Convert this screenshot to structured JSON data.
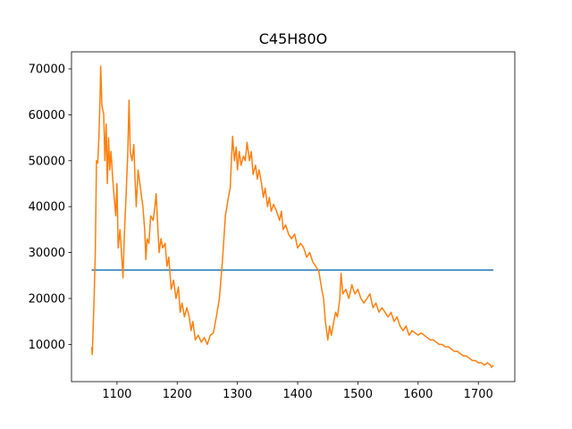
{
  "chart_data": {
    "type": "line",
    "title": "C45H80O",
    "xlim": [
      1024.5,
      1760.5
    ],
    "xticks": [
      1100,
      1200,
      1300,
      1400,
      1500,
      1600,
      1700
    ],
    "ylim": [
      1900,
      73700
    ],
    "yticks": [
      10000,
      20000,
      30000,
      40000,
      50000,
      60000,
      70000
    ],
    "grid": false,
    "series": [
      {
        "color": "#1f77b4",
        "x": [
          1058,
          1725
        ],
        "values": [
          26200,
          26200
        ]
      },
      {
        "color": "#ff7f0e",
        "x": [
          1058,
          1059,
          1062,
          1064,
          1066,
          1068,
          1070,
          1072,
          1073,
          1075,
          1078,
          1080,
          1082,
          1084,
          1086,
          1088,
          1090,
          1093,
          1096,
          1098,
          1100,
          1102,
          1105,
          1107,
          1110,
          1112,
          1115,
          1118,
          1120,
          1122,
          1125,
          1128,
          1130,
          1132,
          1135,
          1138,
          1140,
          1143,
          1146,
          1148,
          1150,
          1153,
          1156,
          1160,
          1163,
          1165,
          1168,
          1170,
          1173,
          1176,
          1180,
          1183,
          1186,
          1190,
          1194,
          1198,
          1202,
          1205,
          1208,
          1212,
          1216,
          1220,
          1223,
          1226,
          1230,
          1235,
          1240,
          1245,
          1250,
          1255,
          1260,
          1265,
          1270,
          1275,
          1280,
          1285,
          1288,
          1290,
          1292,
          1295,
          1298,
          1300,
          1303,
          1306,
          1310,
          1313,
          1316,
          1320,
          1323,
          1326,
          1330,
          1333,
          1336,
          1340,
          1343,
          1346,
          1350,
          1353,
          1356,
          1360,
          1365,
          1370,
          1373,
          1376,
          1380,
          1385,
          1390,
          1395,
          1400,
          1405,
          1410,
          1415,
          1420,
          1425,
          1430,
          1435,
          1440,
          1443,
          1446,
          1448,
          1450,
          1453,
          1456,
          1460,
          1463,
          1466,
          1470,
          1472,
          1475,
          1480,
          1485,
          1490,
          1495,
          1500,
          1505,
          1510,
          1515,
          1520,
          1525,
          1530,
          1535,
          1540,
          1545,
          1550,
          1555,
          1560,
          1565,
          1570,
          1575,
          1580,
          1585,
          1590,
          1595,
          1600,
          1605,
          1610,
          1615,
          1620,
          1625,
          1630,
          1635,
          1640,
          1645,
          1650,
          1655,
          1660,
          1665,
          1670,
          1675,
          1680,
          1685,
          1690,
          1695,
          1700,
          1705,
          1710,
          1715,
          1720,
          1722,
          1725
        ],
        "values": [
          9400,
          7800,
          20000,
          30000,
          50000,
          49500,
          55000,
          64000,
          70600,
          62000,
          60000,
          50000,
          58000,
          45000,
          55000,
          48000,
          52000,
          46000,
          41000,
          38000,
          45000,
          31000,
          35000,
          31000,
          24500,
          33000,
          42000,
          52000,
          63200,
          52000,
          50000,
          53500,
          46000,
          40000,
          48000,
          45000,
          43000,
          40000,
          35000,
          28500,
          33000,
          32000,
          38000,
          37000,
          40000,
          42800,
          35000,
          30000,
          33000,
          31000,
          32000,
          27000,
          29000,
          22000,
          24000,
          20000,
          22500,
          17000,
          19000,
          16000,
          18000,
          16000,
          13000,
          15000,
          11000,
          12000,
          10500,
          11500,
          10000,
          12000,
          12500,
          16000,
          20000,
          28000,
          38000,
          42000,
          44000,
          50000,
          55300,
          50000,
          53000,
          48000,
          52000,
          49000,
          51000,
          50000,
          54000,
          50000,
          52000,
          47000,
          49000,
          46000,
          48000,
          45000,
          42000,
          44000,
          40000,
          42000,
          39000,
          40500,
          39000,
          37000,
          39000,
          35000,
          36000,
          34000,
          33000,
          34000,
          31000,
          32000,
          31000,
          29000,
          30000,
          28000,
          27000,
          26000,
          22000,
          20000,
          15000,
          13000,
          11000,
          14000,
          12000,
          15000,
          17000,
          16000,
          20000,
          25500,
          21000,
          22000,
          20000,
          23000,
          21000,
          22000,
          20000,
          19000,
          20000,
          21000,
          18000,
          19000,
          17000,
          18000,
          17000,
          16000,
          17000,
          15000,
          16000,
          14000,
          13000,
          14000,
          12000,
          13000,
          12500,
          12000,
          12500,
          12000,
          11500,
          11000,
          11000,
          10500,
          10000,
          10000,
          9500,
          9500,
          9000,
          8500,
          8500,
          8000,
          7500,
          7500,
          7000,
          6500,
          6500,
          6000,
          6000,
          5500,
          6000,
          5500,
          5000,
          5500
        ]
      }
    ]
  }
}
